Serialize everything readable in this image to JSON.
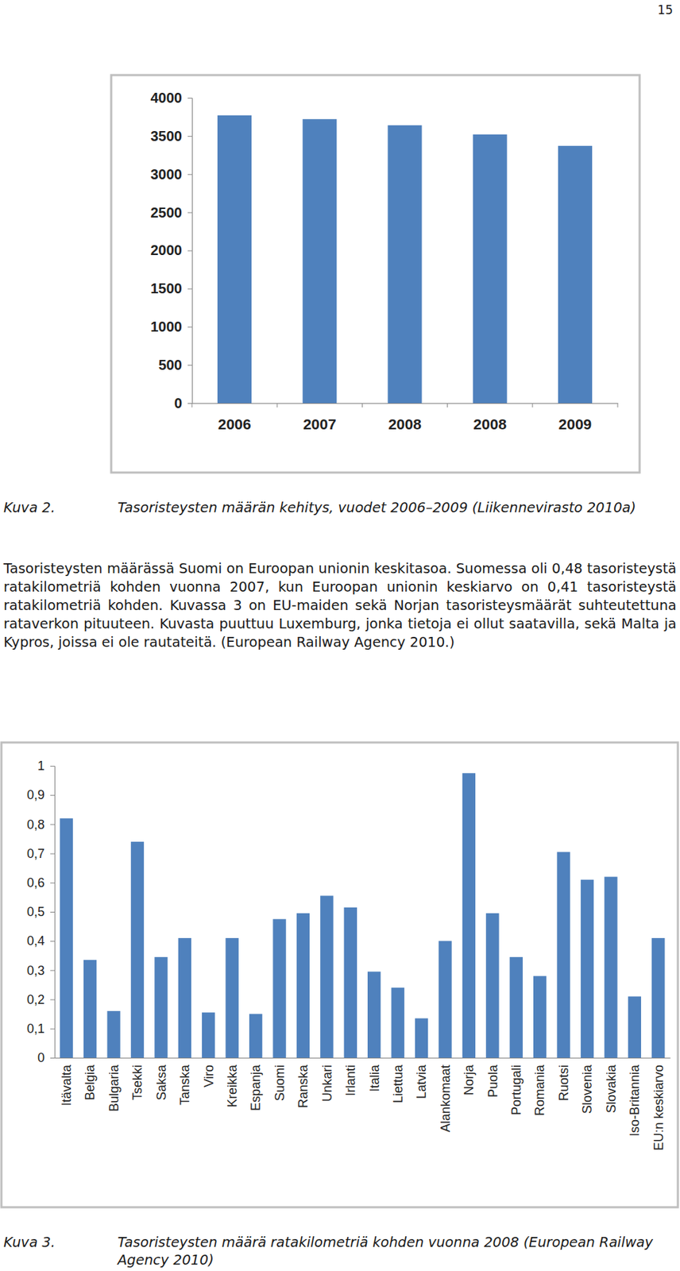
{
  "page": {
    "number": "15",
    "captions": [
      {
        "label": "Kuva 2.",
        "text": "Tasoristeysten määrän kehitys, vuodet 2006–2009 (Liikennevirasto 2010a)"
      },
      {
        "label": "Kuva 3.",
        "text": "Tasoristeysten määrä ratakilometriä kohden vuonna 2008 (European Railway Agency 2010)"
      }
    ],
    "paragraph": "Tasoristeysten määrässä Suomi on Euroopan unionin keskitasoa. Suomessa oli 0,48 tasoristeystä ratakilometriä kohden vuonna 2007, kun Euroopan unionin keskiarvo on 0,41 tasoristeystä ratakilometriä kohden. Kuvassa 3 on EU-maiden sekä Norjan tasoristeysmäärät suhteutettuna rataverkon pituuteen. Kuvasta puuttuu Luxemburg, jonka tietoja ei ollut saatavilla, sekä Malta ja Kypros, joissa ei ole rautateitä. (European Railway Agency 2010.)"
  },
  "chart_data": [
    {
      "type": "bar",
      "categories": [
        "2006",
        "2007",
        "2008",
        "2008",
        "2009"
      ],
      "values": [
        3770,
        3720,
        3640,
        3520,
        3370
      ],
      "color": "#4f81bd",
      "ylim": [
        0,
        4000
      ],
      "yticks": [
        0,
        500,
        1000,
        1500,
        2000,
        2500,
        3000,
        3500,
        4000
      ],
      "grid": false
    },
    {
      "type": "bar",
      "categories": [
        "Itävalta",
        "Belgia",
        "Bulgaria",
        "Tsekki",
        "Saksa",
        "Tanska",
        "Viro",
        "Kreikka",
        "Espanja",
        "Suomi",
        "Ranska",
        "Unkari",
        "Irlanti",
        "Italia",
        "Liettua",
        "Latvia",
        "Alankomaat",
        "Norja",
        "Puola",
        "Portugali",
        "Romania",
        "Ruotsi",
        "Slovenia",
        "Slovakia",
        "Iso-Britannia",
        "EU:n keskiarvo"
      ],
      "values": [
        0.82,
        0.335,
        0.16,
        0.74,
        0.345,
        0.41,
        0.155,
        0.41,
        0.15,
        0.475,
        0.495,
        0.555,
        0.515,
        0.295,
        0.24,
        0.135,
        0.4,
        0.975,
        0.495,
        0.345,
        0.28,
        0.705,
        0.61,
        0.62,
        0.21,
        0.41
      ],
      "color": "#4f81bd",
      "ylim": [
        0,
        1
      ],
      "yticks": [
        0,
        {
          "value": 0.1,
          "label": "0,1"
        },
        {
          "value": 0.2,
          "label": "0,2"
        },
        {
          "value": 0.3,
          "label": "0,3"
        },
        {
          "value": 0.4,
          "label": "0,4"
        },
        {
          "value": 0.5,
          "label": "0,5"
        },
        {
          "value": 0.6,
          "label": "0,6"
        },
        {
          "value": 0.7,
          "label": "0,7"
        },
        {
          "value": 0.8,
          "label": "0,8"
        },
        {
          "value": 0.9,
          "label": "0,9"
        },
        1
      ],
      "grid": false
    }
  ]
}
